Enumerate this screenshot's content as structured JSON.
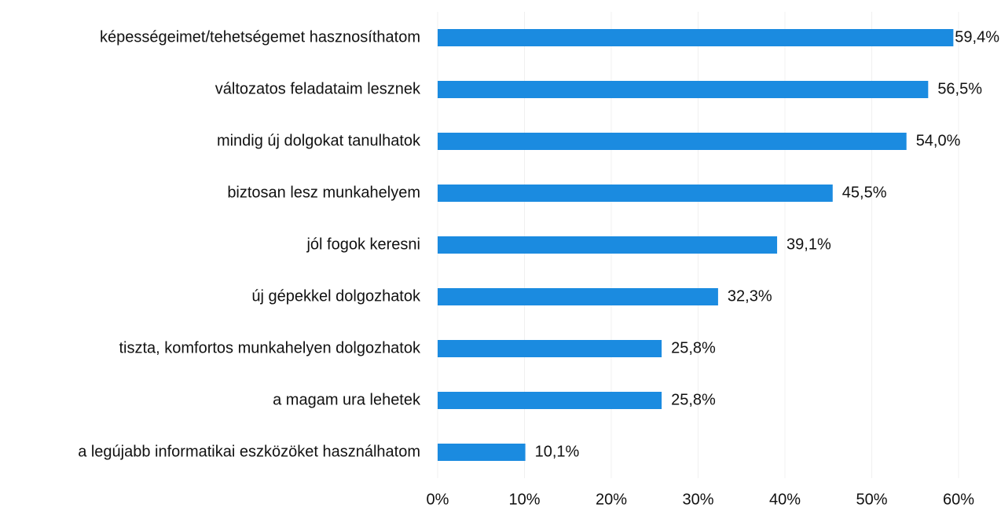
{
  "chart_data": {
    "type": "bar",
    "orientation": "horizontal",
    "categories": [
      "képességeimet/tehetségemet hasznosíthatom",
      "változatos feladataim lesznek",
      "mindig új dolgokat tanulhatok",
      "biztosan lesz munkahelyem",
      "jól fogok keresni",
      "új gépekkel dolgozhatok",
      "tiszta, komfortos munkahelyen dolgozhatok",
      "a magam ura lehetek",
      "a legújabb informatikai eszközöket használhatom"
    ],
    "values": [
      59.4,
      56.5,
      54.0,
      45.5,
      39.1,
      32.3,
      25.8,
      25.8,
      10.1
    ],
    "value_labels": [
      "59,4%",
      "56,5%",
      "54,0%",
      "45,5%",
      "39,1%",
      "32,3%",
      "25,8%",
      "25,8%",
      "10,1%"
    ],
    "color": "#1b8be0",
    "xlim": [
      0,
      60
    ],
    "xticks": [
      {
        "value": 0,
        "label": "0%"
      },
      {
        "value": 10,
        "label": "10%"
      },
      {
        "value": 20,
        "label": "20%"
      },
      {
        "value": 30,
        "label": "30%"
      },
      {
        "value": 40,
        "label": "40%"
      },
      {
        "value": 50,
        "label": "50%"
      },
      {
        "value": 60,
        "label": "60%"
      }
    ],
    "grid": true
  }
}
